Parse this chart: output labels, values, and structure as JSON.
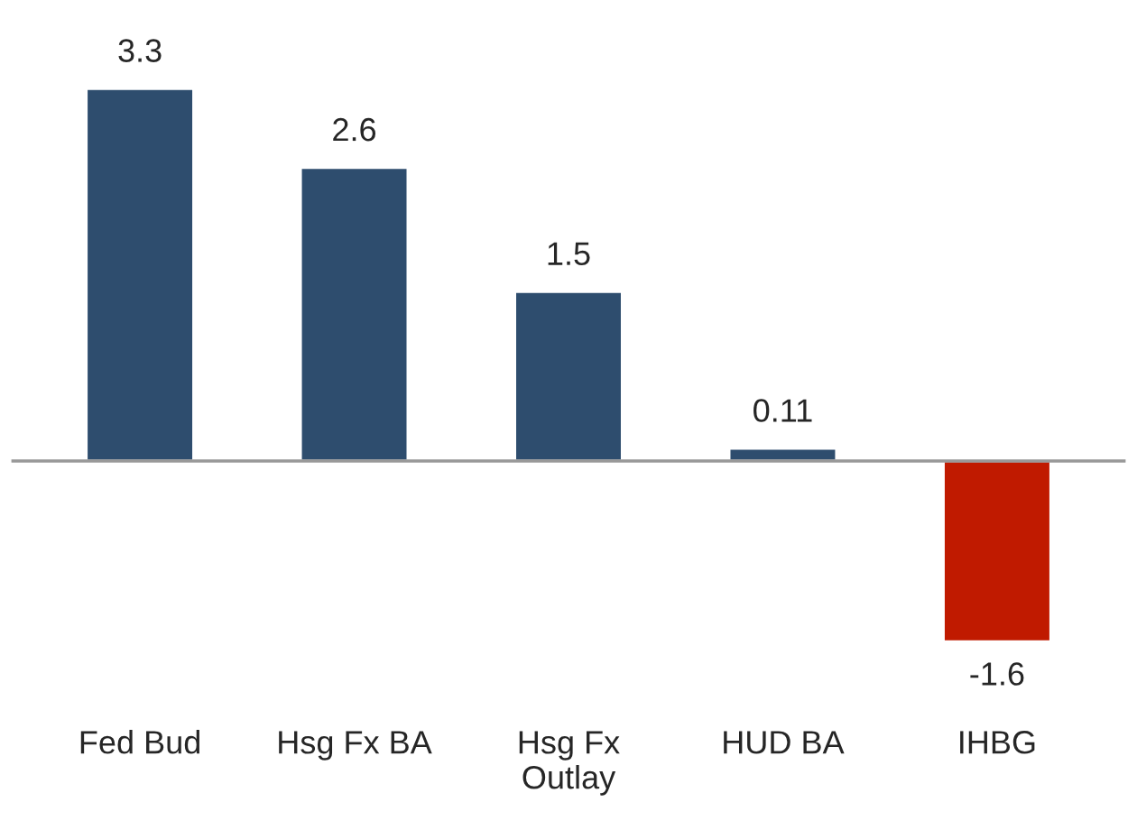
{
  "chart_data": {
    "type": "bar",
    "categories": [
      "Fed Bud",
      "Hsg Fx BA",
      "Hsg Fx\nOutlay",
      "HUD BA",
      "IHBG"
    ],
    "values": [
      3.3,
      2.6,
      1.5,
      0.11,
      -1.6
    ],
    "colors": [
      "#2e4d6e",
      "#2e4d6e",
      "#2e4d6e",
      "#2e4d6e",
      "#c01a00"
    ],
    "data_labels": true,
    "grid": false,
    "legend": false,
    "tick_labels": "x"
  }
}
